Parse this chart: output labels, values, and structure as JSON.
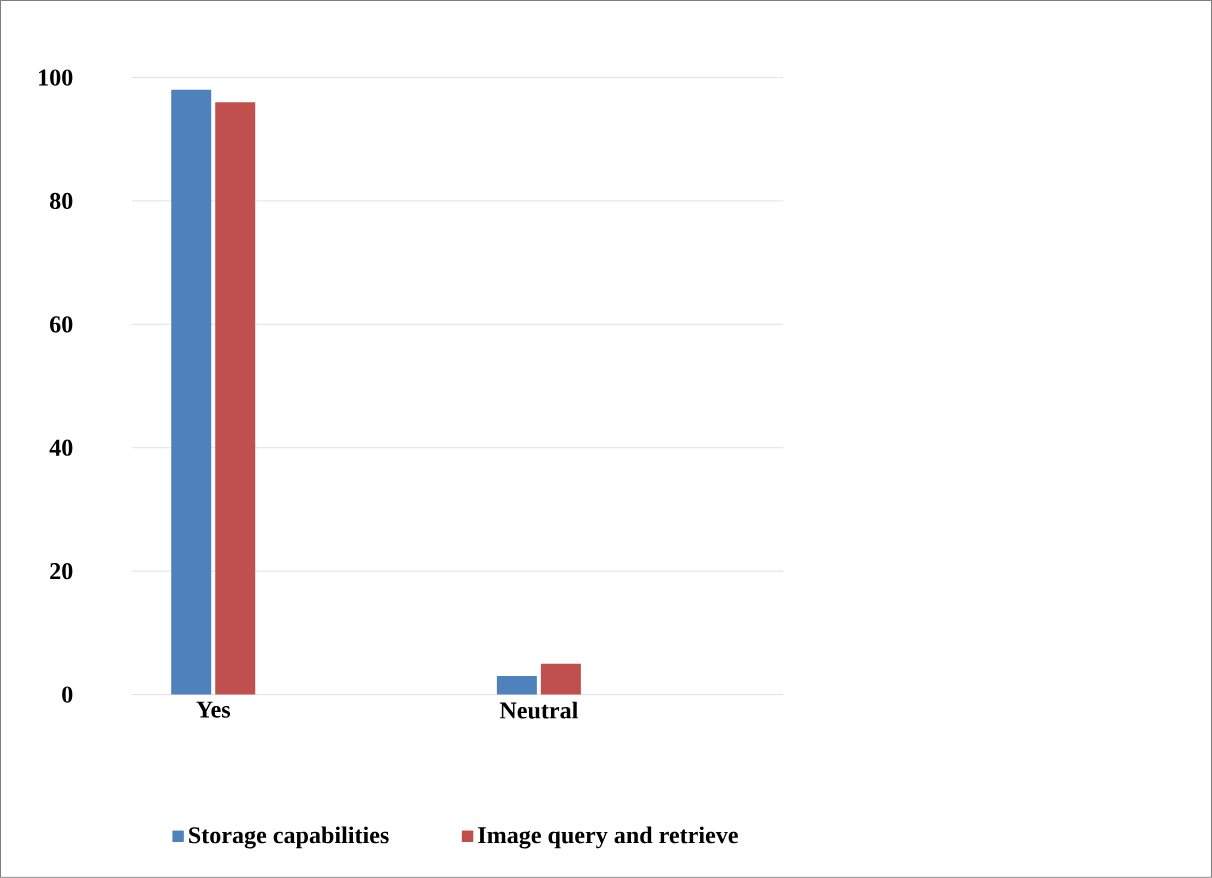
{
  "chart_data": {
    "type": "bar",
    "categories": [
      "Yes",
      null,
      "Neutral",
      null
    ],
    "series": [
      {
        "name": "Storage capabilities",
        "color": "#4f81bd",
        "values": [
          98,
          0,
          3,
          null
        ]
      },
      {
        "name": "Image query and retrieve",
        "color": "#c0504d",
        "values": [
          96,
          0,
          5,
          null
        ]
      }
    ],
    "ylim": [
      0,
      100
    ],
    "yticks": [
      0,
      20,
      40,
      60,
      80,
      100
    ],
    "grid": "y",
    "legend": "bottom"
  }
}
